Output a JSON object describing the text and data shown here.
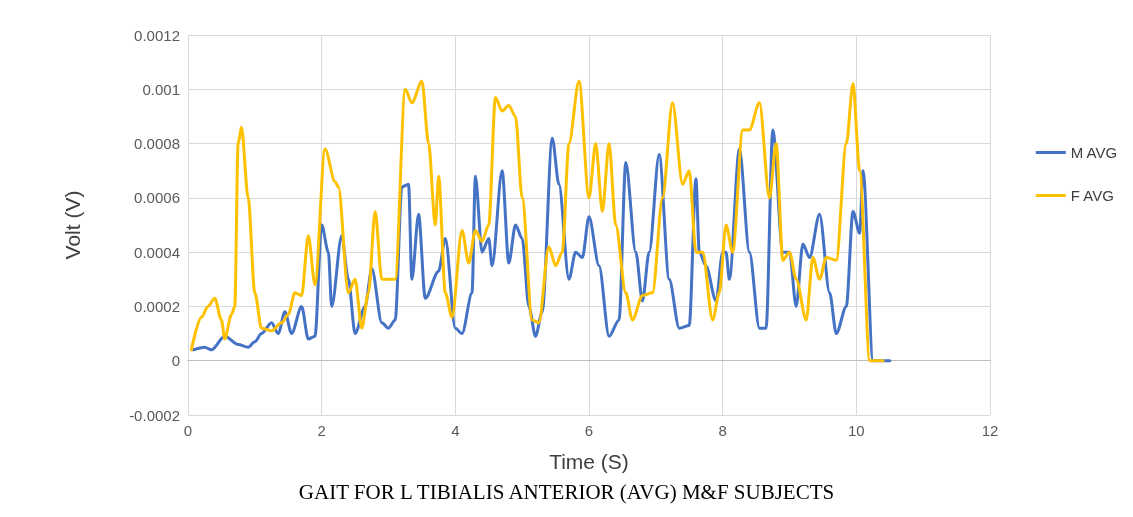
{
  "chart_data": {
    "type": "line",
    "title": "GAIT FOR L TIBIALIS ANTERIOR (AVG) M&F SUBJECTS",
    "xlabel": "Time (S)",
    "ylabel": "Volt (V)",
    "xlim": [
      0,
      12
    ],
    "xticks": [
      0,
      2,
      4,
      6,
      8,
      10,
      12
    ],
    "ylim": [
      -0.0002,
      0.0012
    ],
    "yticks": [
      -0.0002,
      0,
      0.0002,
      0.0004,
      0.0006,
      0.0008,
      0.001,
      0.0012
    ],
    "grid": true,
    "legend": "right",
    "marker": "none",
    "line_style": "solid",
    "series": [
      {
        "name": "M AVG",
        "color": "#4472c4",
        "x": [
          0.08,
          0.25,
          0.35,
          0.55,
          0.75,
          0.9,
          1.0,
          1.1,
          1.25,
          1.35,
          1.45,
          1.55,
          1.7,
          1.8,
          1.9,
          2.0,
          2.1,
          2.15,
          2.3,
          2.4,
          2.5,
          2.65,
          2.75,
          2.9,
          3.0,
          3.1,
          3.2,
          3.3,
          3.35,
          3.45,
          3.55,
          3.75,
          3.85,
          4.0,
          4.1,
          4.25,
          4.3,
          4.4,
          4.5,
          4.55,
          4.7,
          4.8,
          4.9,
          5.0,
          5.1,
          5.2,
          5.3,
          5.45,
          5.55,
          5.7,
          5.8,
          5.9,
          6.0,
          6.15,
          6.3,
          6.45,
          6.55,
          6.7,
          6.8,
          6.9,
          7.05,
          7.2,
          7.35,
          7.5,
          7.6,
          7.65,
          7.75,
          7.9,
          8.0,
          8.05,
          8.1,
          8.25,
          8.4,
          8.55,
          8.65,
          8.75,
          8.9,
          9.0,
          9.1,
          9.2,
          9.3,
          9.45,
          9.6,
          9.7,
          9.85,
          9.95,
          10.05,
          10.1,
          10.25,
          10.5
        ],
        "values": [
          4e-05,
          5e-05,
          4e-05,
          9e-05,
          6e-05,
          5e-05,
          7e-05,
          0.0001,
          0.00014,
          0.0001,
          0.00018,
          0.0001,
          0.0002,
          8e-05,
          9e-05,
          0.0005,
          0.0004,
          0.0002,
          0.00046,
          0.0003,
          0.0001,
          0.0002,
          0.00034,
          0.00014,
          0.00012,
          0.00015,
          0.00064,
          0.00065,
          0.0003,
          0.00054,
          0.00023,
          0.00033,
          0.00045,
          0.00012,
          0.0001,
          0.00025,
          0.00068,
          0.0004,
          0.00045,
          0.00035,
          0.0007,
          0.00036,
          0.0005,
          0.00045,
          0.0002,
          9e-05,
          0.00018,
          0.00082,
          0.00065,
          0.0003,
          0.0004,
          0.00038,
          0.00053,
          0.00035,
          9e-05,
          0.00015,
          0.00073,
          0.0004,
          0.00022,
          0.0004,
          0.00076,
          0.0003,
          0.00012,
          0.00013,
          0.00067,
          0.0004,
          0.00035,
          0.00022,
          0.0004,
          0.0004,
          0.0003,
          0.00078,
          0.0004,
          0.00012,
          0.00012,
          0.00085,
          0.0004,
          0.0004,
          0.0002,
          0.00043,
          0.00038,
          0.00054,
          0.00025,
          0.0001,
          0.0002,
          0.00055,
          0.00047,
          0.0007,
          0,
          0
        ]
      },
      {
        "name": "F AVG",
        "color": "#ffc000",
        "x": [
          0.05,
          0.2,
          0.3,
          0.4,
          0.5,
          0.55,
          0.65,
          0.7,
          0.75,
          0.8,
          0.9,
          1.0,
          1.1,
          1.25,
          1.4,
          1.5,
          1.6,
          1.7,
          1.8,
          1.9,
          2.05,
          2.2,
          2.25,
          2.4,
          2.5,
          2.6,
          2.7,
          2.8,
          2.9,
          3.0,
          3.1,
          3.25,
          3.35,
          3.5,
          3.6,
          3.7,
          3.75,
          3.85,
          3.95,
          4.1,
          4.2,
          4.3,
          4.4,
          4.5,
          4.6,
          4.7,
          4.8,
          4.9,
          5.0,
          5.15,
          5.25,
          5.4,
          5.5,
          5.6,
          5.7,
          5.85,
          6.0,
          6.1,
          6.2,
          6.3,
          6.4,
          6.55,
          6.65,
          6.8,
          6.95,
          7.1,
          7.25,
          7.4,
          7.5,
          7.6,
          7.7,
          7.85,
          7.95,
          8.05,
          8.15,
          8.3,
          8.4,
          8.55,
          8.7,
          8.8,
          8.9,
          9.0,
          9.1,
          9.25,
          9.35,
          9.45,
          9.55,
          9.7,
          9.85,
          9.95,
          10.05,
          10.2,
          10.4
        ],
        "values": [
          4e-05,
          0.00016,
          0.0002,
          0.00023,
          0.00015,
          8e-05,
          0.00017,
          0.0002,
          0.0008,
          0.00086,
          0.0006,
          0.00025,
          0.00012,
          0.00011,
          0.00014,
          0.00017,
          0.00025,
          0.00024,
          0.00046,
          0.00028,
          0.00078,
          0.00066,
          0.00064,
          0.00025,
          0.0003,
          0.00012,
          0.00025,
          0.00055,
          0.0003,
          0.0003,
          0.0003,
          0.001,
          0.00095,
          0.00103,
          0.0008,
          0.0005,
          0.00068,
          0.00025,
          0.00016,
          0.00048,
          0.00036,
          0.00048,
          0.00044,
          0.0005,
          0.00097,
          0.00092,
          0.00094,
          0.0009,
          0.0006,
          0.00015,
          0.00014,
          0.00042,
          0.00035,
          0.0004,
          0.0008,
          0.00103,
          0.0006,
          0.0008,
          0.00055,
          0.0008,
          0.0005,
          0.00025,
          0.00015,
          0.00024,
          0.00025,
          0.0006,
          0.00095,
          0.00065,
          0.0007,
          0.0004,
          0.0004,
          0.00015,
          0.00025,
          0.0005,
          0.0004,
          0.00085,
          0.00085,
          0.00095,
          0.0006,
          0.0008,
          0.00037,
          0.0004,
          0.0003,
          0.00015,
          0.00038,
          0.0003,
          0.00038,
          0.00037,
          0.0008,
          0.00102,
          0.0007,
          0,
          0
        ]
      }
    ]
  }
}
